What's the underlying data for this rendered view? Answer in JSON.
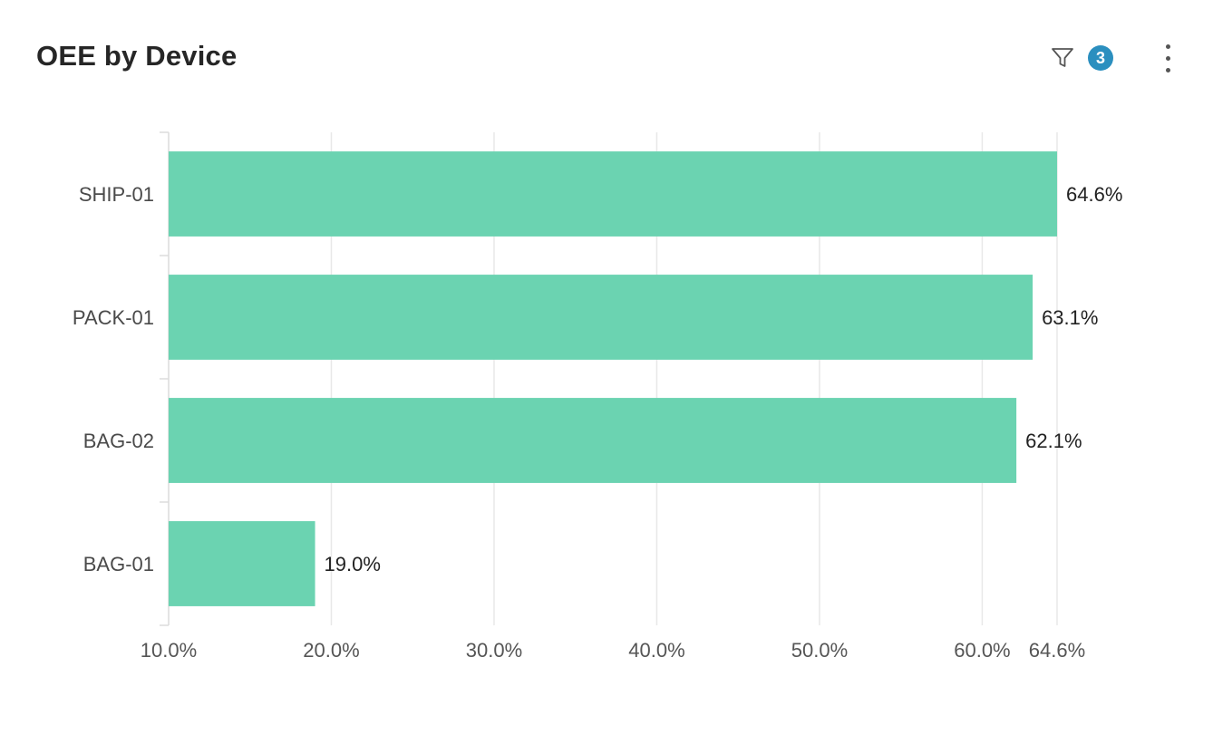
{
  "header": {
    "title": "OEE by Device",
    "filter_icon": "filter-icon",
    "filter_count": "3",
    "menu_icon": "more-vertical-icon"
  },
  "colors": {
    "bar": "#6bd3b1",
    "grid": "#e8e8e8",
    "badge": "#2b8fbf"
  },
  "chart_data": {
    "type": "bar",
    "orientation": "horizontal",
    "categories": [
      "SHIP-01",
      "PACK-01",
      "BAG-02",
      "BAG-01"
    ],
    "values": [
      64.6,
      63.1,
      62.1,
      19.0
    ],
    "data_labels": [
      "64.6%",
      "63.1%",
      "62.1%",
      "19.0%"
    ],
    "xlim": [
      10.0,
      64.6
    ],
    "xticks": [
      10,
      20,
      30,
      40,
      50,
      60,
      64.6
    ],
    "xtick_labels": [
      "10.0%",
      "20.0%",
      "30.0%",
      "40.0%",
      "50.0%",
      "60.0%",
      "64.6%"
    ],
    "grid": true
  }
}
